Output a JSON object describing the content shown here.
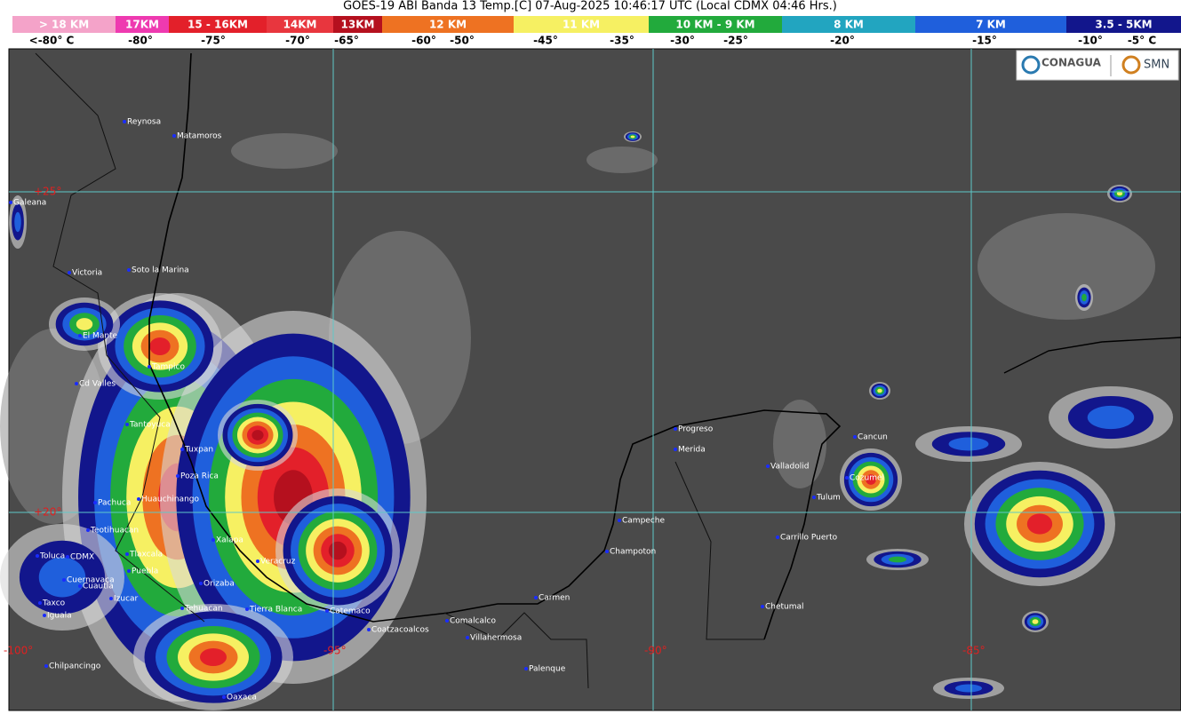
{
  "header": {
    "title": "GOES-19 ABI Banda 13 Temp.[C] 07-Aug-2025 10:46:17 UTC (Local CDMX  04:46 Hrs.)"
  },
  "legend": {
    "bands": [
      {
        "label": "> 18 KM",
        "color": "#f4a3c9"
      },
      {
        "label": "17KM",
        "color": "#ee3ab0"
      },
      {
        "label": "15 - 16KM",
        "color": "#e3202a"
      },
      {
        "label": "14KM",
        "color": "#e8363e"
      },
      {
        "label": "13KM",
        "color": "#b5101e"
      },
      {
        "label": "12 KM",
        "color": "#ee7222"
      },
      {
        "label": "11 KM",
        "color": "#f6f062"
      },
      {
        "label": "10 KM -  9 KM",
        "color": "#22aa3c"
      },
      {
        "label": "8 KM",
        "color": "#22a5c0"
      },
      {
        "label": "7 KM",
        "color": "#1f5fdc"
      },
      {
        "label": "3.5 - 5KM",
        "color": "#12168c"
      }
    ],
    "temperatures": [
      "<-80° C",
      "-80°",
      "-75°",
      "-70°",
      "-65°",
      "-60°",
      "-50°",
      "-45°",
      "-35°",
      "-30°",
      "-25°",
      "-20°",
      "-15°",
      "-10°",
      "-5° C"
    ]
  },
  "map": {
    "cities": [
      "Reynosa",
      "Matamoros",
      "Galeana",
      "Victoria",
      "Soto la Marina",
      "El Mante",
      "Tampico",
      "Cd Valles",
      "Tantoyuca",
      "Tuxpan",
      "Poza Rica",
      "Pachuca",
      "Huauchinango",
      "Teotihuacan",
      "Toluca",
      "CDMX",
      "Tlaxcala",
      "Xalapa",
      "Puebla",
      "Cuernavaca",
      "Cuautla",
      "Izucar",
      "Orizaba",
      "Veracruz",
      "Tehuacan",
      "Tierra Blanca",
      "Catemaco",
      "Taxco",
      "Iguala",
      "Coatzacoalcos",
      "Comalcalco",
      "Villahermosa",
      "Chilpancingo",
      "Oaxaca",
      "Carmen",
      "Palenque",
      "Champoton",
      "Campeche",
      "Progreso",
      "Merida",
      "Valladolid",
      "Cancun",
      "Cozumel",
      "Tulum",
      "Carrillo Puerto",
      "Chetumal"
    ],
    "grid_labels": [
      "+25°",
      "+20°",
      "-100°",
      "-95°",
      "-90°",
      "-85°"
    ]
  },
  "logos": {
    "conagua": "CONAGUA",
    "smn": "SMN"
  }
}
